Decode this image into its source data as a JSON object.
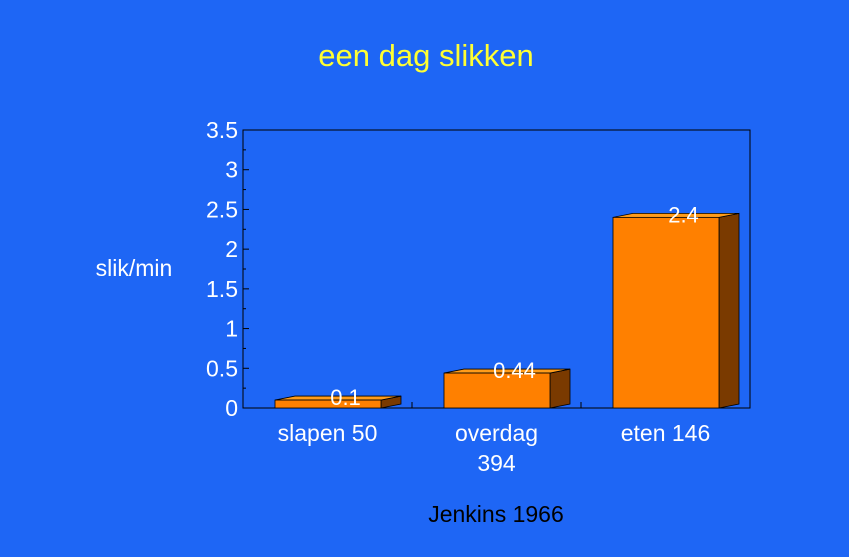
{
  "chart_data": {
    "type": "bar",
    "title": "een dag slikken",
    "ylabel": "slik/min",
    "xlabel": "",
    "categories": [
      [
        "slapen 50"
      ],
      [
        "overdag",
        "394"
      ],
      [
        "eten 146"
      ]
    ],
    "values": [
      0.1,
      0.44,
      2.4
    ],
    "data_labels": [
      "0.1",
      "0.44",
      "2.4"
    ],
    "ylim": [
      0,
      3.5
    ],
    "yticks": [
      "0",
      "0.5",
      "1",
      "1.5",
      "2",
      "2.5",
      "3",
      "3.5"
    ],
    "bar_style": "3d",
    "grid": false,
    "source": "Jenkins 1966"
  },
  "colors": {
    "background": "#1e66f5",
    "title": "#ffff33",
    "bar_front": "#ff8000",
    "bar_top": "#ff9c1a",
    "bar_side": "#7a3a00",
    "text": "#ffffff",
    "source": "#000000",
    "axis": "#000000"
  }
}
